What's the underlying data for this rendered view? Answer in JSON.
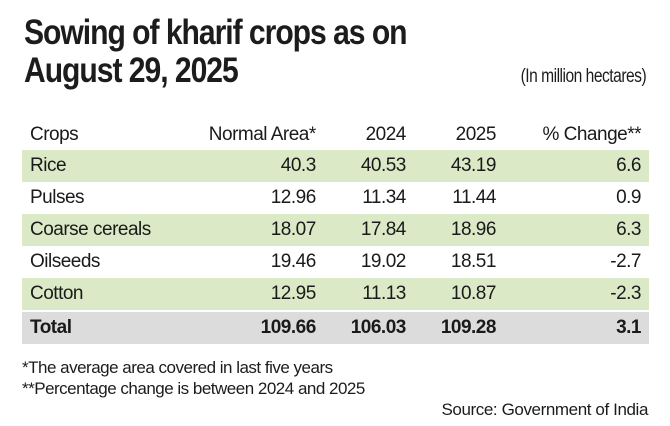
{
  "title": "Sowing of kharif crops as on August 29, 2025",
  "unit_note": "(In million hectares)",
  "chart_data": {
    "type": "table",
    "title": "Sowing of kharif crops as on August 29, 2025",
    "subtitle": "(In million hectares)",
    "columns": [
      "Crops",
      "Normal Area*",
      "2024",
      "2025",
      "% Change**"
    ],
    "rows": [
      {
        "crop": "Rice",
        "normal": "40.3",
        "y2024": "40.53",
        "y2025": "43.19",
        "change": "6.6"
      },
      {
        "crop": "Pulses",
        "normal": "12.96",
        "y2024": "11.34",
        "y2025": "11.44",
        "change": "0.9"
      },
      {
        "crop": "Coarse cereals",
        "normal": "18.07",
        "y2024": "17.84",
        "y2025": "18.96",
        "change": "6.3"
      },
      {
        "crop": "Oilseeds",
        "normal": "19.46",
        "y2024": "19.02",
        "y2025": "18.51",
        "change": "-2.7"
      },
      {
        "crop": "Cotton",
        "normal": "12.95",
        "y2024": "11.13",
        "y2025": "10.87",
        "change": "-2.3"
      }
    ],
    "total": {
      "crop": "Total",
      "normal": "109.66",
      "y2024": "106.03",
      "y2025": "109.28",
      "change": "3.1"
    }
  },
  "footnotes": [
    "*The average area covered in last five years",
    "**Percentage change is between 2024 and 2025"
  ],
  "source": "Source: Government of India",
  "colors": {
    "shade": "#dbe9c6",
    "total": "#dcdcdc"
  }
}
